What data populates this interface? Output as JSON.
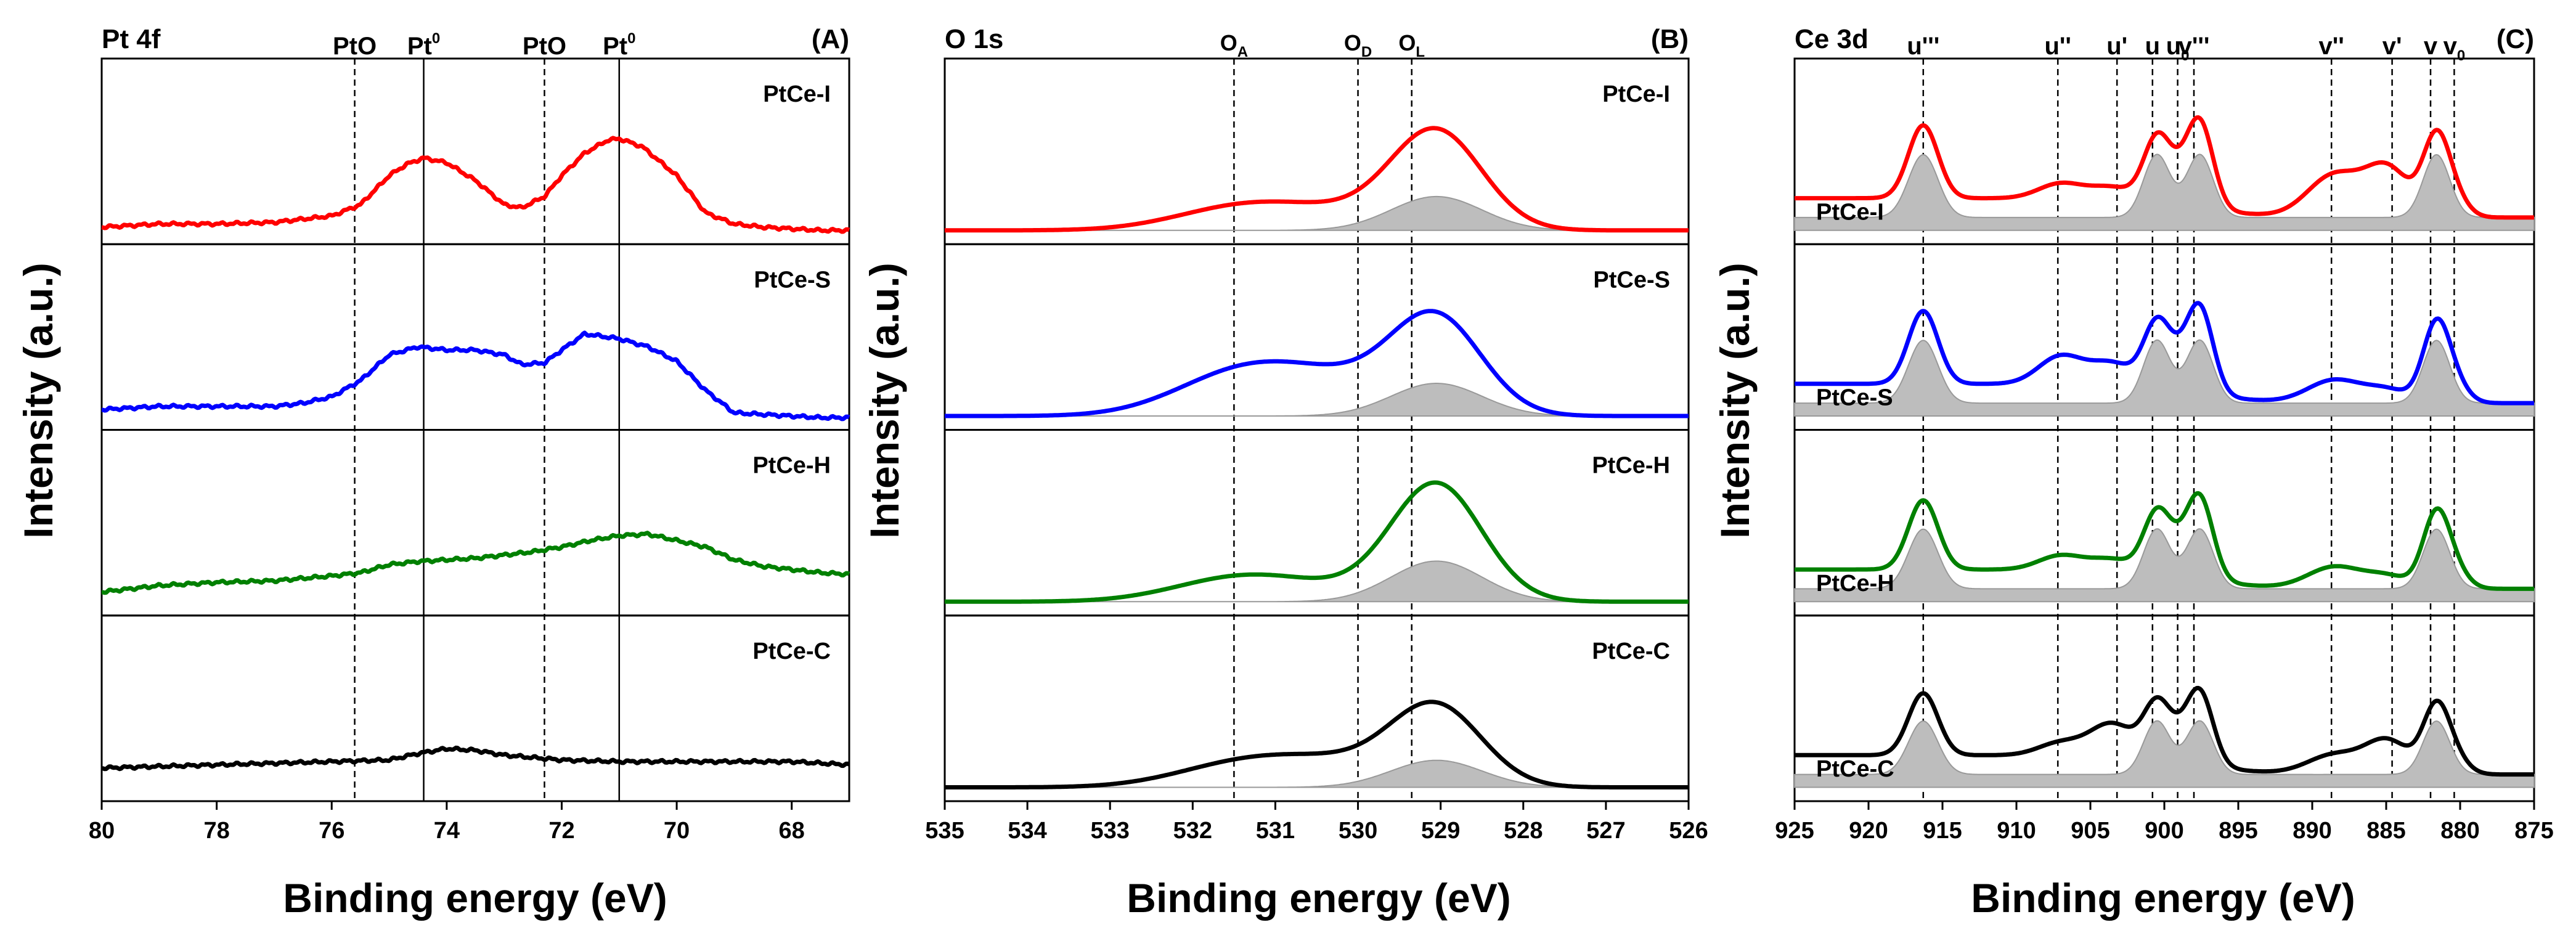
{
  "chart_data": [
    {
      "type": "line",
      "id": "A",
      "title": "Pt 4f",
      "panel_label": "(A)",
      "xlabel": "Binding energy (eV)",
      "ylabel": "Intensity (a.u.)",
      "xlim": [
        80,
        67
      ],
      "xticks": [
        80,
        78,
        76,
        74,
        72,
        70,
        68
      ],
      "ref_lines": [
        {
          "x": 75.6,
          "style": "dashed",
          "label": "PtO",
          "sub": ""
        },
        {
          "x": 74.4,
          "style": "solid",
          "label": "Pt",
          "sup": "0"
        },
        {
          "x": 72.3,
          "style": "dashed",
          "label": "PtO",
          "sub": ""
        },
        {
          "x": 71.0,
          "style": "solid",
          "label": "Pt",
          "sup": "0"
        }
      ],
      "series": [
        {
          "name": "PtCe-I",
          "color": "#ff0000",
          "x": [
            80,
            79,
            78,
            77,
            76.5,
            76,
            75.5,
            75,
            74.7,
            74.4,
            74,
            73.5,
            73,
            72.7,
            72.3,
            72,
            71.6,
            71.2,
            71,
            70.6,
            70,
            69.5,
            69,
            68.5,
            68,
            67.5,
            67
          ],
          "y": [
            0.06,
            0.08,
            0.08,
            0.09,
            0.11,
            0.13,
            0.2,
            0.38,
            0.45,
            0.49,
            0.46,
            0.35,
            0.2,
            0.18,
            0.25,
            0.38,
            0.52,
            0.6,
            0.61,
            0.56,
            0.38,
            0.15,
            0.08,
            0.06,
            0.05,
            0.04,
            0.04
          ]
        },
        {
          "name": "PtCe-S",
          "color": "#0000ff",
          "x": [
            80,
            79,
            78,
            77,
            76.5,
            76,
            75.5,
            75,
            74.5,
            74,
            73.5,
            73,
            72.7,
            72.3,
            72,
            71.6,
            71.2,
            71,
            70.5,
            70,
            69.5,
            69,
            68.5,
            68,
            67.5,
            67
          ],
          "y": [
            0.08,
            0.1,
            0.1,
            0.1,
            0.12,
            0.16,
            0.26,
            0.42,
            0.47,
            0.45,
            0.45,
            0.42,
            0.36,
            0.37,
            0.45,
            0.55,
            0.53,
            0.52,
            0.47,
            0.38,
            0.2,
            0.06,
            0.05,
            0.04,
            0.03,
            0.03
          ]
        },
        {
          "name": "PtCe-H",
          "color": "#008000",
          "x": [
            80,
            79,
            78,
            77,
            76,
            75.5,
            75,
            74.5,
            74,
            73.5,
            73,
            72.5,
            72,
            71.5,
            71,
            70.5,
            70,
            69.5,
            69,
            68.5,
            68,
            67.5,
            67
          ],
          "y": [
            0.1,
            0.14,
            0.16,
            0.17,
            0.2,
            0.22,
            0.27,
            0.29,
            0.3,
            0.31,
            0.33,
            0.35,
            0.38,
            0.42,
            0.45,
            0.46,
            0.42,
            0.38,
            0.3,
            0.26,
            0.24,
            0.22,
            0.21
          ]
        },
        {
          "name": "PtCe-C",
          "color": "#000000",
          "x": [
            80,
            79,
            78,
            77,
            76,
            75,
            74.5,
            74,
            73.5,
            73,
            72,
            71,
            70,
            69,
            68,
            67.5,
            67
          ],
          "y": [
            0.16,
            0.17,
            0.18,
            0.19,
            0.2,
            0.21,
            0.25,
            0.28,
            0.27,
            0.24,
            0.21,
            0.2,
            0.2,
            0.2,
            0.2,
            0.19,
            0.18
          ]
        }
      ]
    },
    {
      "type": "line",
      "id": "B",
      "title": "O 1s",
      "panel_label": "(B)",
      "xlabel": "Binding energy (eV)",
      "ylabel": "Intensity (a.u.)",
      "xlim": [
        535,
        526
      ],
      "xticks": [
        535,
        534,
        533,
        532,
        531,
        530,
        529,
        528,
        527,
        526
      ],
      "ref_lines": [
        {
          "x": 531.5,
          "style": "dashed",
          "label": "O",
          "sub": "A"
        },
        {
          "x": 530.0,
          "style": "dashed",
          "label": "O",
          "sub": "D"
        },
        {
          "x": 529.35,
          "style": "dashed",
          "label": "O",
          "sub": "L"
        }
      ],
      "components": [
        {
          "name": "O_A",
          "center": 531.4,
          "width": 0.8
        },
        {
          "name": "O_D",
          "center": 530.2,
          "width": 0.8
        },
        {
          "name": "O_L",
          "center": 529.05,
          "width": 0.55
        }
      ],
      "series": [
        {
          "name": "PtCe-I",
          "color": "#ff0000",
          "amps": [
            0.14,
            0.09,
            0.6
          ]
        },
        {
          "name": "PtCe-S",
          "color": "#0000ff",
          "amps": [
            0.26,
            0.18,
            0.58
          ]
        },
        {
          "name": "PtCe-H",
          "color": "#008000",
          "amps": [
            0.15,
            0.05,
            0.72
          ]
        },
        {
          "name": "PtCe-C",
          "color": "#000000",
          "amps": [
            0.14,
            0.13,
            0.48
          ]
        }
      ]
    },
    {
      "type": "line",
      "id": "C",
      "title": "Ce 3d",
      "panel_label": "(C)",
      "xlabel": "Binding energy (eV)",
      "ylabel": "Intensity (a.u.)",
      "xlim": [
        925,
        875
      ],
      "xticks": [
        925,
        920,
        915,
        910,
        905,
        900,
        895,
        890,
        885,
        880,
        875
      ],
      "ref_lines": [
        {
          "x": 916.3,
          "style": "dashed",
          "label": "u'''",
          "sub": ""
        },
        {
          "x": 907.2,
          "style": "dashed",
          "label": "u''",
          "sub": ""
        },
        {
          "x": 903.2,
          "style": "dashed",
          "label": "u'",
          "sub": ""
        },
        {
          "x": 900.8,
          "style": "dashed",
          "label": "u",
          "sub": ""
        },
        {
          "x": 899.1,
          "style": "dashed",
          "label": "u",
          "sub": "0"
        },
        {
          "x": 898.0,
          "style": "dashed",
          "label": "v'''",
          "sub": ""
        },
        {
          "x": 888.7,
          "style": "dashed",
          "label": "v''",
          "sub": ""
        },
        {
          "x": 884.6,
          "style": "dashed",
          "label": "v'",
          "sub": ""
        },
        {
          "x": 882.0,
          "style": "dashed",
          "label": "v",
          "sub": ""
        },
        {
          "x": 880.4,
          "style": "dashed",
          "label": "v",
          "sub": "0"
        }
      ],
      "peaks": [
        {
          "name": "u'''",
          "center": 916.3,
          "width": 1.0,
          "rel": 0.58
        },
        {
          "name": "u''",
          "center": 907.0,
          "width": 1.5,
          "rel": 0.12
        },
        {
          "name": "u'",
          "center": 903.5,
          "width": 1.5,
          "rel": 0.1
        },
        {
          "name": "u",
          "center": 900.5,
          "width": 0.9,
          "rel": 0.5
        },
        {
          "name": "u0",
          "center": 899.1,
          "width": 0.9,
          "rel": 0.15
        },
        {
          "name": "v'''",
          "center": 897.6,
          "width": 0.9,
          "rel": 0.68
        },
        {
          "name": "v''",
          "center": 888.5,
          "width": 1.8,
          "rel": 0.18
        },
        {
          "name": "v'",
          "center": 884.9,
          "width": 1.5,
          "rel": 0.1
        },
        {
          "name": "v",
          "center": 881.6,
          "width": 0.9,
          "rel": 0.62
        },
        {
          "name": "v0",
          "center": 880.3,
          "width": 0.9,
          "rel": 0.12
        }
      ],
      "series": [
        {
          "name": "PtCe-I",
          "color": "#ff0000",
          "scale": 1.0,
          "extra": [
            0,
            0,
            0,
            0,
            0,
            0,
            0.12,
            0.22,
            0,
            0
          ]
        },
        {
          "name": "PtCe-S",
          "color": "#0000ff",
          "scale": 1.0,
          "extra": [
            0,
            0.08,
            0.06,
            0,
            0,
            0,
            0,
            0,
            0,
            0
          ]
        },
        {
          "name": "PtCe-H",
          "color": "#008000",
          "scale": 0.95,
          "extra": [
            0,
            0,
            0,
            0,
            0,
            0,
            0,
            0,
            0,
            0
          ]
        },
        {
          "name": "PtCe-C",
          "color": "#000000",
          "scale": 0.85,
          "extra": [
            0,
            0,
            0.14,
            0,
            0,
            0,
            0,
            0.14,
            0,
            0
          ]
        }
      ]
    }
  ]
}
